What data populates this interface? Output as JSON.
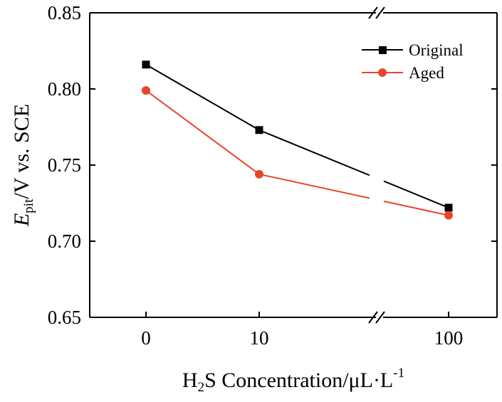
{
  "chart_data": {
    "type": "line",
    "categories": [
      "0",
      "10",
      "100"
    ],
    "x_break": "between 10 and 100",
    "y_ticks": [
      "0.65",
      "0.70",
      "0.75",
      "0.80",
      "0.85"
    ],
    "ylim": [
      0.65,
      0.85
    ],
    "series": [
      {
        "name": "Original",
        "values": [
          0.816,
          0.773,
          0.722
        ],
        "color": "#000000",
        "marker": "square"
      },
      {
        "name": "Aged",
        "values": [
          0.799,
          0.744,
          0.717
        ],
        "color": "#e8452c",
        "marker": "circle"
      }
    ],
    "xlabel": {
      "a": "H",
      "sub": "2",
      "b": "S Concentration/μL·L",
      "sup": "-1"
    },
    "ylabel": {
      "a": "E",
      "sub": "pit",
      "b": "/V vs. SCE"
    },
    "legend_position": "top-right",
    "grid": false
  }
}
